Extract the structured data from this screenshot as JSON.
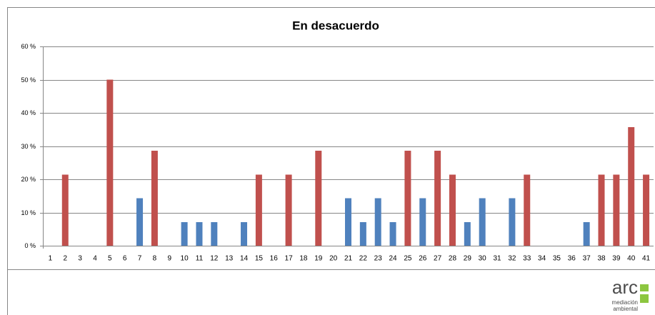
{
  "chart_data": {
    "type": "bar",
    "title": "En desacuerdo",
    "categories": [
      "1",
      "2",
      "3",
      "4",
      "5",
      "6",
      "7",
      "8",
      "9",
      "10",
      "11",
      "12",
      "13",
      "14",
      "15",
      "16",
      "17",
      "18",
      "19",
      "20",
      "21",
      "22",
      "23",
      "24",
      "25",
      "26",
      "27",
      "28",
      "29",
      "30",
      "31",
      "32",
      "33",
      "34",
      "35",
      "36",
      "37",
      "38",
      "39",
      "40",
      "41"
    ],
    "values": [
      0,
      21.4,
      0,
      0,
      50,
      0,
      14.3,
      28.6,
      0,
      7.1,
      7.1,
      7.1,
      0,
      7.1,
      21.4,
      0,
      21.4,
      0,
      28.6,
      0,
      14.3,
      7.1,
      14.3,
      7.1,
      28.6,
      14.3,
      28.6,
      21.4,
      7.1,
      14.3,
      0,
      14.3,
      21.4,
      0,
      0,
      0,
      7.1,
      21.4,
      21.4,
      35.7,
      21.4
    ],
    "colors": [
      "#4f81bd",
      "#c0504d",
      "#4f81bd",
      "#4f81bd",
      "#c0504d",
      "#4f81bd",
      "#4f81bd",
      "#c0504d",
      "#4f81bd",
      "#4f81bd",
      "#4f81bd",
      "#4f81bd",
      "#4f81bd",
      "#4f81bd",
      "#c0504d",
      "#4f81bd",
      "#c0504d",
      "#4f81bd",
      "#c0504d",
      "#4f81bd",
      "#4f81bd",
      "#4f81bd",
      "#4f81bd",
      "#4f81bd",
      "#c0504d",
      "#4f81bd",
      "#c0504d",
      "#c0504d",
      "#4f81bd",
      "#4f81bd",
      "#4f81bd",
      "#4f81bd",
      "#c0504d",
      "#4f81bd",
      "#4f81bd",
      "#4f81bd",
      "#4f81bd",
      "#c0504d",
      "#c0504d",
      "#c0504d",
      "#c0504d"
    ],
    "ylim": [
      0,
      60
    ],
    "yticks": [
      {
        "value": 0,
        "label": "0 %"
      },
      {
        "value": 10,
        "label": "10 %"
      },
      {
        "value": 20,
        "label": "20 %"
      },
      {
        "value": 30,
        "label": "30 %"
      },
      {
        "value": 40,
        "label": "40 %"
      },
      {
        "value": 50,
        "label": "50 %"
      },
      {
        "value": 60,
        "label": "60 %"
      }
    ],
    "grid": true
  },
  "logo": {
    "main": "arc",
    "line1": "mediación",
    "line2": "ambiental"
  }
}
